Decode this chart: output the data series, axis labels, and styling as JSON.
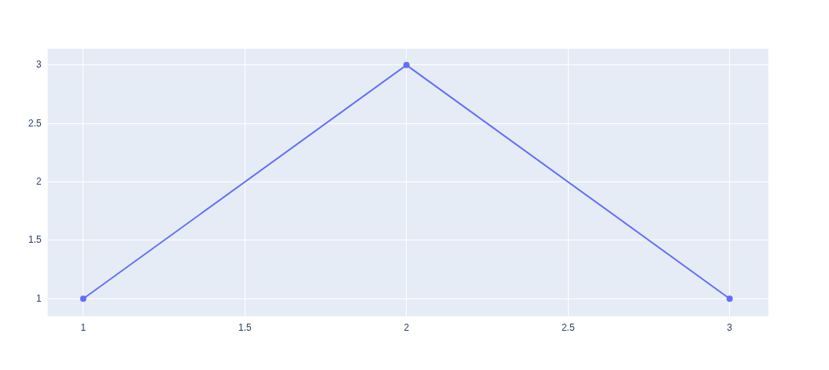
{
  "chart_data": {
    "type": "line",
    "x": [
      1,
      2,
      3
    ],
    "series": [
      {
        "color": "#636efa",
        "values": [
          1,
          3,
          1
        ]
      }
    ],
    "xlim": [
      0.89,
      3.12
    ],
    "ylim": [
      0.85,
      3.14
    ],
    "xticks": [
      1,
      1.5,
      2,
      2.5,
      3
    ],
    "yticks": [
      1,
      1.5,
      2,
      2.5,
      3
    ],
    "grid": true,
    "legend": false,
    "marker": "circle",
    "line_style": "solid"
  }
}
